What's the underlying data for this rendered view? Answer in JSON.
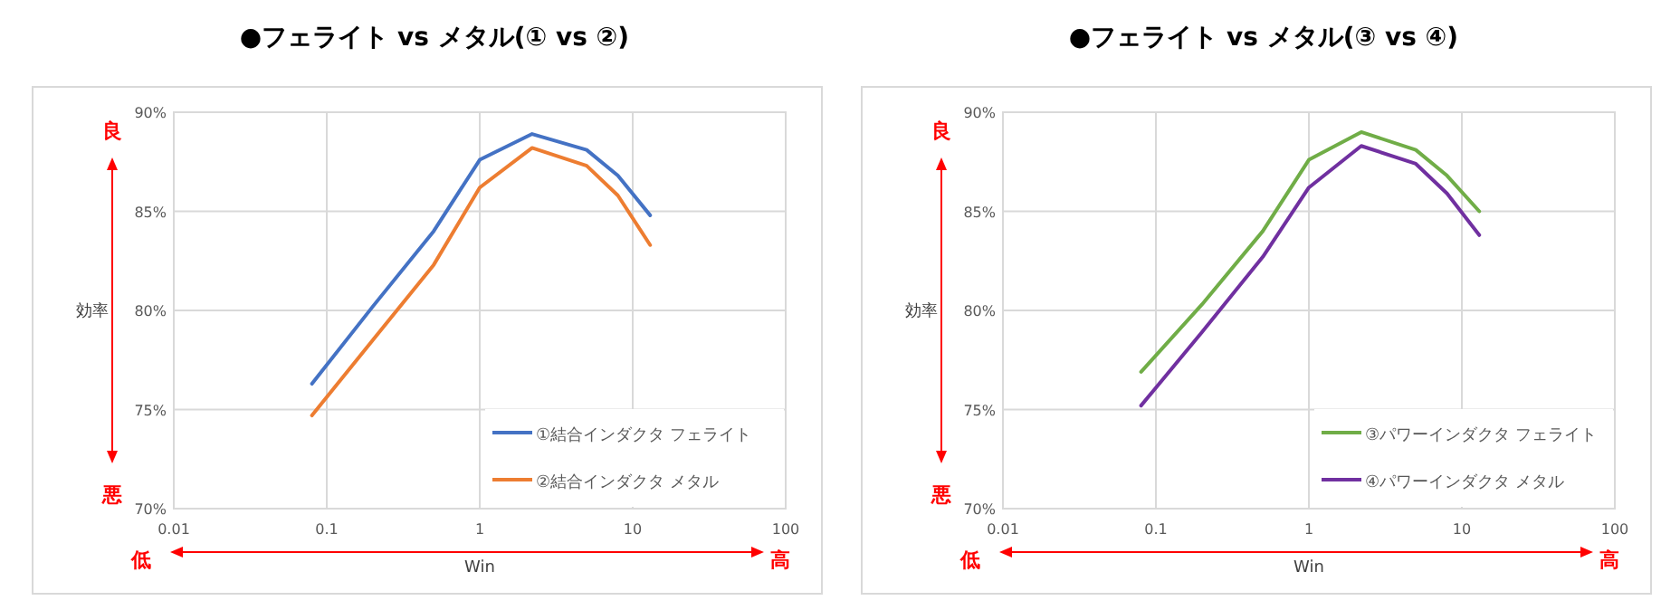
{
  "chart_data": [
    {
      "type": "line",
      "title": "●フェライト vs メタル(① vs ②)",
      "xlabel": "Win",
      "ylabel": "効率",
      "annotations": [
        "良",
        "悪",
        "低",
        "高"
      ],
      "log": "x",
      "grid": true,
      "legend": "bottom right",
      "x": [
        0.08,
        0.2,
        0.5,
        1,
        2.2,
        5,
        8,
        13
      ],
      "xlim": [
        0.01,
        100
      ],
      "xticks": [
        0.01,
        0.1,
        1,
        10,
        100
      ],
      "ylim": [
        70,
        90
      ],
      "yticks": [
        {
          "value": 70,
          "label": "70%"
        },
        {
          "value": 75,
          "label": "75%"
        },
        {
          "value": 80,
          "label": "80%"
        },
        {
          "value": 85,
          "label": "85%"
        },
        {
          "value": 90,
          "label": "90%"
        }
      ],
      "series": [
        {
          "name": "①結合インダクタ フェライト",
          "color": "#4472c4",
          "values": [
            76.3,
            80.2,
            84.0,
            87.6,
            88.9,
            88.1,
            86.8,
            84.8
          ]
        },
        {
          "name": "②結合インダクタ メタル",
          "color": "#ed7d31",
          "values": [
            74.7,
            78.5,
            82.3,
            86.2,
            88.2,
            87.3,
            85.8,
            83.3
          ]
        }
      ]
    },
    {
      "type": "line",
      "title": "●フェライト vs メタル(③ vs ④)",
      "xlabel": "Win",
      "ylabel": "効率",
      "annotations": [
        "良",
        "悪",
        "低",
        "高"
      ],
      "log": "x",
      "grid": true,
      "legend": "bottom right",
      "x": [
        0.08,
        0.2,
        0.5,
        1,
        2.2,
        5,
        8,
        13
      ],
      "xlim": [
        0.01,
        100
      ],
      "xticks": [
        0.01,
        0.1,
        1,
        10,
        100
      ],
      "ylim": [
        70,
        90
      ],
      "yticks": [
        {
          "value": 70,
          "label": "70%"
        },
        {
          "value": 75,
          "label": "75%"
        },
        {
          "value": 80,
          "label": "80%"
        },
        {
          "value": 85,
          "label": "85%"
        },
        {
          "value": 90,
          "label": "90%"
        }
      ],
      "series": [
        {
          "name": "③パワーインダクタ フェライト",
          "color": "#70ad47",
          "values": [
            76.9,
            80.3,
            84.0,
            87.6,
            89.0,
            88.1,
            86.8,
            85.0
          ]
        },
        {
          "name": "④パワーインダクタ メタル",
          "color": "#7030a0",
          "values": [
            75.2,
            78.9,
            82.7,
            86.2,
            88.3,
            87.4,
            85.9,
            83.8
          ]
        }
      ]
    }
  ]
}
